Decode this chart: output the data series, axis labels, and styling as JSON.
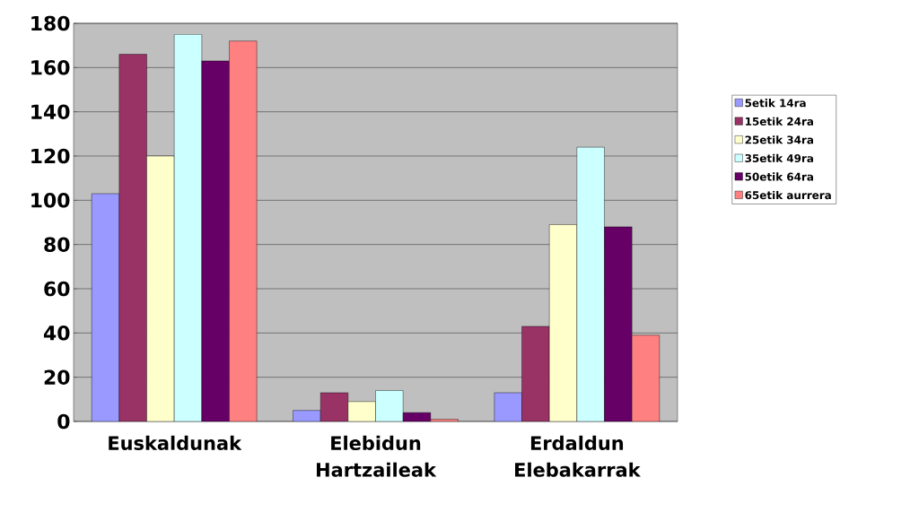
{
  "chart_data": {
    "type": "bar",
    "categories": [
      "Euskaldunak",
      "Elebidun Hartzaileak",
      "Erdaldun Elebakarrak"
    ],
    "series": [
      {
        "name": "5etik 14ra",
        "color": "#9999ff",
        "values": [
          103,
          5,
          13
        ]
      },
      {
        "name": "15etik 24ra",
        "color": "#993366",
        "values": [
          166,
          13,
          43
        ]
      },
      {
        "name": "25etik 34ra",
        "color": "#ffffcc",
        "values": [
          120,
          9,
          89
        ]
      },
      {
        "name": "35etik 49ra",
        "color": "#ccffff",
        "values": [
          175,
          14,
          124
        ]
      },
      {
        "name": "50etik 64ra",
        "color": "#660066",
        "values": [
          163,
          4,
          88
        ]
      },
      {
        "name": "65etik aurrera",
        "color": "#ff8080",
        "values": [
          172,
          1,
          39
        ]
      }
    ],
    "ylim": [
      0,
      180
    ],
    "yticks": [
      0,
      20,
      40,
      60,
      80,
      100,
      120,
      140,
      160,
      180
    ],
    "grid": "y",
    "legend": "right"
  }
}
